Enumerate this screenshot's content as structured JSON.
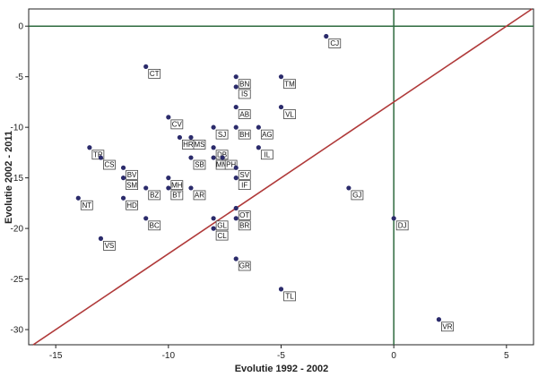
{
  "chart_data": {
    "type": "scatter",
    "title": "",
    "xlabel": "Evolutie 1992 - 2002",
    "ylabel": "Evolutie 2002 - 2011",
    "xlim": [
      -16.2,
      6.2
    ],
    "ylim": [
      -31.5,
      1.7
    ],
    "xticks": [
      -15,
      -10,
      -5,
      0,
      5
    ],
    "yticks": [
      0,
      -5,
      -10,
      -15,
      -20,
      -25,
      -30
    ],
    "grid": false,
    "reference_lines": [
      {
        "kind": "vertical",
        "x": 0,
        "color": "#2e6b3f"
      },
      {
        "kind": "horizontal",
        "y": 0,
        "color": "#2e6b3f"
      },
      {
        "kind": "fit",
        "slope": 1.5,
        "intercept": -7.5,
        "color": "#b03a3a"
      }
    ],
    "point_color": "#2b2b6b",
    "points": [
      {
        "label": "CJ",
        "x": -3.0,
        "y": -1.0
      },
      {
        "label": "CT",
        "x": -11.0,
        "y": -4.0
      },
      {
        "label": "BN",
        "x": -7.0,
        "y": -5.0
      },
      {
        "label": "IS",
        "x": -7.0,
        "y": -6.0
      },
      {
        "label": "TM",
        "x": -5.0,
        "y": -5.0
      },
      {
        "label": "AB",
        "x": -7.0,
        "y": -8.0
      },
      {
        "label": "VL",
        "x": -5.0,
        "y": -8.0
      },
      {
        "label": "CV",
        "x": -10.0,
        "y": -9.0
      },
      {
        "label": "SJ",
        "x": -8.0,
        "y": -10.0
      },
      {
        "label": "BH",
        "x": -7.0,
        "y": -10.0
      },
      {
        "label": "AG",
        "x": -6.0,
        "y": -10.0
      },
      {
        "label": "HR",
        "x": -9.5,
        "y": -11.0
      },
      {
        "label": "MS",
        "x": -9.0,
        "y": -11.0
      },
      {
        "label": "DB",
        "x": -8.0,
        "y": -12.0
      },
      {
        "label": "IL",
        "x": -6.0,
        "y": -12.0
      },
      {
        "label": "TR",
        "x": -13.5,
        "y": -12.0
      },
      {
        "label": "CS",
        "x": -13.0,
        "y": -13.0
      },
      {
        "label": "SB",
        "x": -9.0,
        "y": -13.0
      },
      {
        "label": "MM",
        "x": -8.0,
        "y": -13.0
      },
      {
        "label": "PH",
        "x": -7.6,
        "y": -13.0
      },
      {
        "label": "MH",
        "x": -10.0,
        "y": -15.0
      },
      {
        "label": "SV",
        "x": -7.0,
        "y": -14.0
      },
      {
        "label": "BV",
        "x": -12.0,
        "y": -14.0
      },
      {
        "label": "SM",
        "x": -12.0,
        "y": -15.0
      },
      {
        "label": "IF",
        "x": -7.0,
        "y": -15.0
      },
      {
        "label": "BZ",
        "x": -11.0,
        "y": -16.0
      },
      {
        "label": "BT",
        "x": -10.0,
        "y": -16.0
      },
      {
        "label": "AR",
        "x": -9.0,
        "y": -16.0
      },
      {
        "label": "GJ",
        "x": -2.0,
        "y": -16.0
      },
      {
        "label": "NT",
        "x": -14.0,
        "y": -17.0
      },
      {
        "label": "HD",
        "x": -12.0,
        "y": -17.0
      },
      {
        "label": "OT",
        "x": -7.0,
        "y": -18.0
      },
      {
        "label": "GL",
        "x": -8.0,
        "y": -19.0
      },
      {
        "label": "BC",
        "x": -11.0,
        "y": -19.0
      },
      {
        "label": "BR",
        "x": -7.0,
        "y": -19.0
      },
      {
        "label": "DJ",
        "x": 0.0,
        "y": -19.0
      },
      {
        "label": "CL",
        "x": -8.0,
        "y": -20.0
      },
      {
        "label": "VS",
        "x": -13.0,
        "y": -21.0
      },
      {
        "label": "GR",
        "x": -7.0,
        "y": -23.0
      },
      {
        "label": "TL",
        "x": -5.0,
        "y": -26.0
      },
      {
        "label": "VR",
        "x": 2.0,
        "y": -29.0
      }
    ]
  }
}
